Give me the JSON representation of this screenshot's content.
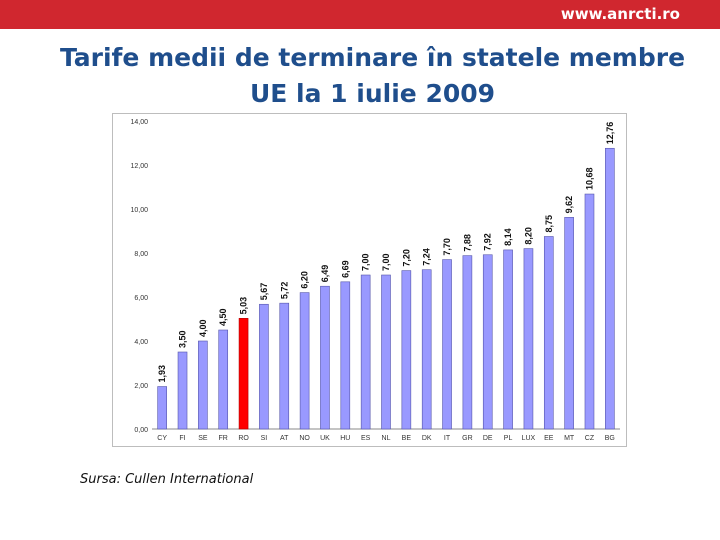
{
  "header": {
    "url": "www.anrcti.ro"
  },
  "title_lines": [
    "Tarife medii de terminare în statele membre",
    "UE la 1 iulie 2009"
  ],
  "source": "Sursa: Cullen International",
  "colors": {
    "bar": "#9999ff",
    "highlight": "#ff0000",
    "brand": "#d0272f",
    "title": "#1f4e8c"
  },
  "chart_data": {
    "type": "bar",
    "categories": [
      "CY",
      "FI",
      "SE",
      "FR",
      "RO",
      "SI",
      "AT",
      "NO",
      "UK",
      "HU",
      "ES",
      "NL",
      "BE",
      "DK",
      "IT",
      "GR",
      "DE",
      "PL",
      "LUX",
      "EE",
      "MT",
      "CZ",
      "BG"
    ],
    "values": [
      1.93,
      3.5,
      4.0,
      4.5,
      5.03,
      5.67,
      5.72,
      6.2,
      6.49,
      6.69,
      7.0,
      7.0,
      7.2,
      7.24,
      7.7,
      7.88,
      7.92,
      8.14,
      8.2,
      8.75,
      9.62,
      10.68,
      12.76
    ],
    "value_labels": [
      "1,93",
      "3,50",
      "4,00",
      "4,50",
      "5,03",
      "5,67",
      "5,72",
      "6,20",
      "6,49",
      "6,69",
      "7,00",
      "7,00",
      "7,20",
      "7,24",
      "7,70",
      "7,88",
      "7,92",
      "8,14",
      "8,20",
      "8,75",
      "9,62",
      "10,68",
      "12,76"
    ],
    "highlight": "RO",
    "ylim": [
      0,
      14
    ],
    "yticks": [
      "0,00",
      "2,00",
      "4,00",
      "6,00",
      "8,00",
      "10,00",
      "12,00",
      "14,00"
    ],
    "grid": false,
    "title": "",
    "xlabel": "",
    "ylabel": ""
  }
}
